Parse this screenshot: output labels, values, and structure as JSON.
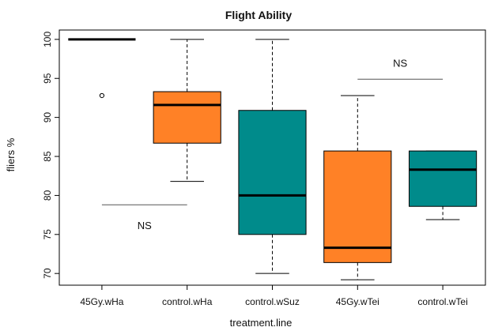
{
  "chart_data": {
    "type": "boxplot",
    "title": "Flight Ability",
    "xlabel": "treatment.line",
    "ylabel": "fliers %",
    "ylim": [
      68.5,
      101.2
    ],
    "yticks": [
      70,
      75,
      80,
      85,
      90,
      95,
      100
    ],
    "grid": false,
    "legend": "none",
    "categories": [
      "45Gy.wHa",
      "control.wHa",
      "control.wSuz",
      "45Gy.wTei",
      "control.wTei"
    ],
    "boxes": [
      {
        "category": "45Gy.wHa",
        "min": 100,
        "q1": 100,
        "median": 100,
        "q3": 100,
        "max": 100,
        "outliers": [
          92.8
        ],
        "color": "#ffffff"
      },
      {
        "category": "control.wHa",
        "min": 81.8,
        "q1": 86.7,
        "median": 91.6,
        "q3": 93.3,
        "max": 100,
        "outliers": [],
        "color": "#FF8126"
      },
      {
        "category": "control.wSuz",
        "min": 70,
        "q1": 75,
        "median": 80,
        "q3": 90.9,
        "max": 100,
        "outliers": [],
        "color": "#008B8B"
      },
      {
        "category": "45Gy.wTei",
        "min": 69.2,
        "q1": 71.4,
        "median": 73.3,
        "q3": 85.7,
        "max": 92.8,
        "outliers": [],
        "color": "#FF8126"
      },
      {
        "category": "control.wTei",
        "min": 76.9,
        "q1": 78.6,
        "median": 83.3,
        "q3": 85.7,
        "max": 85.7,
        "outliers": [],
        "color": "#008B8B"
      }
    ],
    "annotations": [
      {
        "text": "NS",
        "from_category": 0.5,
        "to_category": 1.5,
        "line_y": 78.8,
        "text_y": 76.2
      },
      {
        "text": "NS",
        "from_category": 3.5,
        "to_category": 4.5,
        "line_y": 94.9,
        "text_y": 97.0
      }
    ]
  }
}
